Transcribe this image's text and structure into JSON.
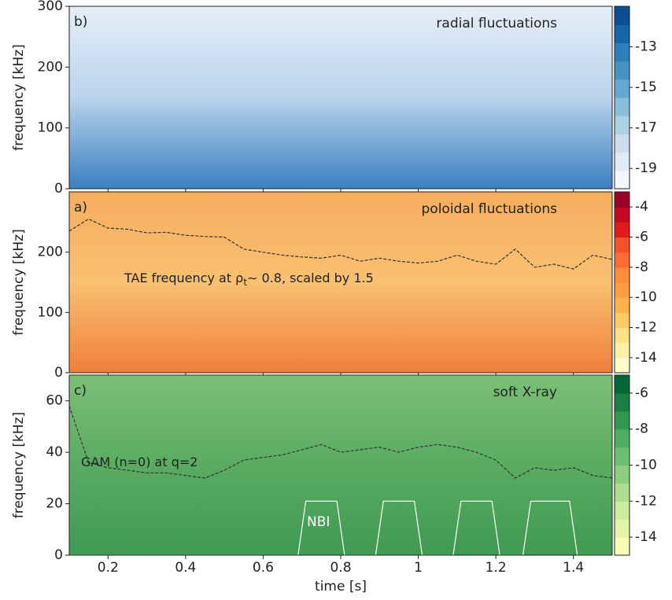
{
  "chart_data": [
    {
      "type": "spectrogram",
      "panel_label": "b)",
      "title": "radial fluctuations",
      "ylabel": "frequency [kHz]",
      "xlim": [
        0.1,
        1.5
      ],
      "xticks": [
        0.2,
        0.4,
        0.6,
        0.8,
        1.0,
        1.2,
        1.4
      ],
      "ylim": [
        0,
        300
      ],
      "yticks": [
        0,
        100,
        200,
        300
      ],
      "clim": [
        -20,
        -11
      ],
      "cticks": [
        -19,
        -17,
        -15,
        -13
      ],
      "colormap": [
        "#f2f7fd",
        "#dfebf7",
        "#cadef0",
        "#acd0e6",
        "#89bedc",
        "#65a9d3",
        "#4692c4",
        "#2e7ebc",
        "#1764ab",
        "#0b4e94"
      ],
      "background": [
        "#e6eef8",
        "#b9d3ec",
        "#3a7fc0"
      ]
    },
    {
      "type": "spectrogram",
      "panel_label": "a)",
      "title": "poloidal fluctuations",
      "ylabel": "frequency [kHz]",
      "xlim": [
        0.1,
        1.5
      ],
      "xticks": [
        0.2,
        0.4,
        0.6,
        0.8,
        1.0,
        1.2,
        1.4
      ],
      "ylim": [
        0,
        300
      ],
      "yticks": [
        0,
        100,
        200
      ],
      "clim": [
        -15,
        -3
      ],
      "cticks": [
        -14,
        -12,
        -10,
        -8,
        -6,
        -4
      ],
      "colormap": [
        "#ffffcc",
        "#fff0a8",
        "#fee187",
        "#fec965",
        "#feb24c",
        "#fd9c42",
        "#fd8d3c",
        "#fc6c33",
        "#f4502a",
        "#e31a1c",
        "#c40a22",
        "#9b0026"
      ],
      "background": [
        "#f6ad5e",
        "#f9c072",
        "#f07f3a"
      ],
      "annotation": [
        "TAE frequency at ρ",
        "t",
        "∼ 0.8, scaled by 1.5"
      ],
      "lines": [
        {
          "color": "#333333",
          "style": "dashed",
          "x": [
            0.1,
            0.15,
            0.2,
            0.25,
            0.3,
            0.35,
            0.4,
            0.45,
            0.5,
            0.55,
            0.6,
            0.65,
            0.7,
            0.75,
            0.8,
            0.85,
            0.9,
            0.95,
            1.0,
            1.05,
            1.1,
            1.15,
            1.2,
            1.25,
            1.3,
            1.35,
            1.4,
            1.45,
            1.5
          ],
          "values": [
            235,
            255,
            240,
            238,
            232,
            233,
            228,
            226,
            225,
            205,
            200,
            195,
            192,
            190,
            195,
            185,
            190,
            185,
            182,
            185,
            195,
            185,
            180,
            205,
            175,
            180,
            172,
            195,
            188
          ]
        }
      ]
    },
    {
      "type": "spectrogram",
      "panel_label": "c)",
      "title": "soft X-ray",
      "ylabel": "frequency [kHz]",
      "xlabel": "time [s]",
      "xlim": [
        0.1,
        1.5
      ],
      "xticks": [
        0.2,
        0.4,
        0.6,
        0.8,
        1.0,
        1.2,
        1.4
      ],
      "ylim": [
        0,
        70
      ],
      "yticks": [
        0,
        20,
        40,
        60
      ],
      "clim": [
        -15,
        -5
      ],
      "cticks": [
        -14,
        -12,
        -10,
        -8,
        -6
      ],
      "colormap": [
        "#f7fcb9",
        "#e3f4a8",
        "#cbeb9d",
        "#addd8e",
        "#8dcf82",
        "#6cbf72",
        "#4cae61",
        "#309650",
        "#1a7f40",
        "#006837"
      ],
      "background": [
        "#7cbf78",
        "#5aab62",
        "#3f9a52"
      ],
      "annotation": [
        "GAM (n=0) at q=2"
      ],
      "line_label": "NBI",
      "lines": [
        {
          "color": "#333333",
          "style": "dashed",
          "x": [
            0.1,
            0.15,
            0.2,
            0.25,
            0.3,
            0.35,
            0.4,
            0.45,
            0.5,
            0.55,
            0.6,
            0.65,
            0.7,
            0.75,
            0.8,
            0.85,
            0.9,
            0.95,
            1.0,
            1.05,
            1.1,
            1.15,
            1.2,
            1.25,
            1.3,
            1.35,
            1.4,
            1.45,
            1.5
          ],
          "values": [
            58,
            36,
            34,
            33,
            32,
            32,
            31,
            30,
            33,
            37,
            38,
            39,
            41,
            43,
            40,
            41,
            42,
            40,
            42,
            43,
            42,
            40,
            37,
            30,
            34,
            33,
            34,
            31,
            30
          ]
        },
        {
          "color": "#ffffff",
          "style": "solid",
          "x": [
            0.1,
            0.69,
            0.71,
            0.79,
            0.81,
            0.89,
            0.91,
            0.99,
            1.01,
            1.09,
            1.11,
            1.19,
            1.21,
            1.27,
            1.29,
            1.39,
            1.41,
            1.5
          ],
          "values": [
            0,
            0,
            21,
            21,
            0,
            0,
            21,
            21,
            0,
            0,
            21,
            21,
            0,
            0,
            21,
            21,
            0,
            0
          ]
        }
      ]
    }
  ]
}
